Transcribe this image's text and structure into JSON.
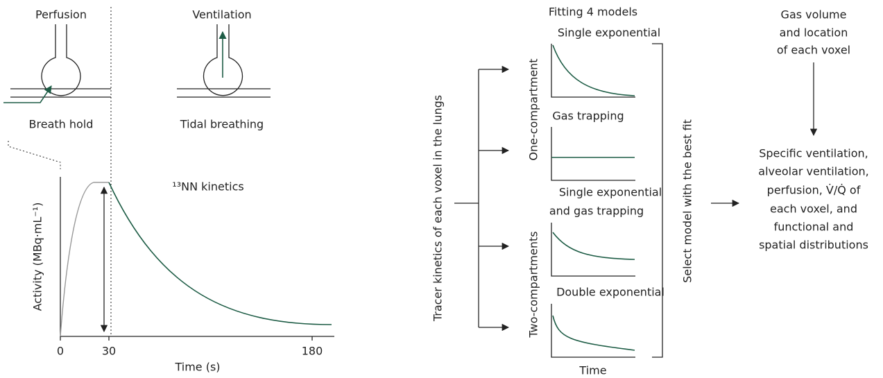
{
  "left_panel": {
    "perfusion": {
      "title": "Perfusion",
      "caption": "Breath hold"
    },
    "ventilation": {
      "title": "Ventilation",
      "caption": "Tidal breathing"
    },
    "plot": {
      "y_label": "Activity (MBq·mL⁻¹)",
      "x_label": "Time (s)",
      "x_ticks": [
        "0",
        "30",
        "180"
      ],
      "annotation": "¹³NN kinetics"
    }
  },
  "middle_panel": {
    "input": "Tracer kinetics of each voxel in the lungs",
    "header": "Fitting 4 models",
    "groups": [
      "One-compartment",
      "Two-compartments"
    ],
    "models": [
      {
        "title_lines": [
          "Single exponential"
        ]
      },
      {
        "title_lines": [
          "Gas trapping"
        ]
      },
      {
        "title_lines": [
          "Single exponential",
          "and gas  trapping"
        ]
      },
      {
        "title_lines": [
          "Double exponential"
        ]
      }
    ],
    "x_label": "Time",
    "selection": "Select model with the best fit"
  },
  "right_panel": {
    "input_lines": [
      "Gas volume",
      "and location",
      "of each voxel"
    ],
    "output_lines": [
      "Specific ventilation,",
      "alveolar ventilation,",
      "perfusion, V̇/Q̇ of",
      "each voxel, and",
      "functional and",
      "spatial distributions"
    ]
  }
}
